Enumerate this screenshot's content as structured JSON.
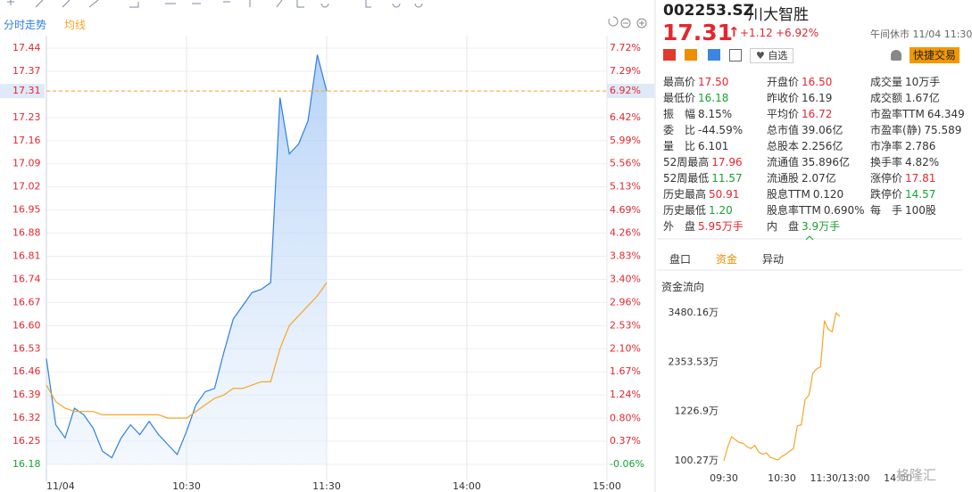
{
  "toolbar": {
    "tab": "分时走势",
    "ma": "均线"
  },
  "chart_data": {
    "type": "line",
    "x": [
      "09:30",
      "09:34",
      "09:38",
      "09:42",
      "09:46",
      "09:50",
      "09:54",
      "09:58",
      "10:02",
      "10:06",
      "10:10",
      "10:14",
      "10:18",
      "10:22",
      "10:26",
      "10:30",
      "10:34",
      "10:38",
      "10:42",
      "10:46",
      "10:50",
      "10:54",
      "10:58",
      "11:02",
      "11:06",
      "11:10",
      "11:14",
      "11:18",
      "11:22",
      "11:26",
      "11:30"
    ],
    "series": [
      {
        "color": "#2f7fe0",
        "values": [
          16.5,
          16.3,
          16.26,
          16.35,
          16.33,
          16.29,
          16.22,
          16.2,
          16.26,
          16.3,
          16.27,
          16.31,
          16.27,
          16.24,
          16.21,
          16.28,
          16.36,
          16.4,
          16.41,
          16.52,
          16.62,
          16.66,
          16.7,
          16.71,
          16.73,
          17.29,
          17.12,
          17.15,
          17.22,
          17.42,
          17.31
        ]
      },
      {
        "color": "#f5a623",
        "values": [
          16.42,
          16.37,
          16.35,
          16.34,
          16.34,
          16.34,
          16.33,
          16.33,
          16.33,
          16.33,
          16.33,
          16.33,
          16.33,
          16.32,
          16.32,
          16.32,
          16.34,
          16.36,
          16.38,
          16.39,
          16.41,
          16.41,
          16.42,
          16.43,
          16.43,
          16.53,
          16.6,
          16.63,
          16.66,
          16.69,
          16.73
        ]
      }
    ],
    "ylim": [
      16.18,
      17.44
    ],
    "yticks": [
      17.44,
      17.37,
      17.31,
      17.23,
      17.16,
      17.09,
      17.02,
      16.95,
      16.88,
      16.81,
      16.74,
      16.67,
      {
        "value": 16.6,
        "label": "16.60"
      },
      16.53,
      16.46,
      16.39,
      16.32,
      16.25,
      16.18
    ],
    "y2lim": [
      -0.06,
      7.72
    ],
    "y2ticks": [
      {
        "value": 7.72,
        "label": "7.72%"
      },
      {
        "value": 7.29,
        "label": "7.29%"
      },
      {
        "value": 6.92,
        "label": "6.92%"
      },
      {
        "value": 6.42,
        "label": "6.42%"
      },
      {
        "value": 5.99,
        "label": "5.99%"
      },
      {
        "value": 5.56,
        "label": "5.56%"
      },
      {
        "value": 5.13,
        "label": "5.13%"
      },
      {
        "value": 4.69,
        "label": "4.69%"
      },
      {
        "value": 4.26,
        "label": "4.26%"
      },
      {
        "value": 3.83,
        "label": "3.83%"
      },
      {
        "value": 3.4,
        "label": "3.40%"
      },
      {
        "value": 2.96,
        "label": "2.96%"
      },
      {
        "value": 2.53,
        "label": "2.53%"
      },
      {
        "value": 2.1,
        "label": "2.10%"
      },
      {
        "value": 1.67,
        "label": "1.67%"
      },
      {
        "value": 1.24,
        "label": "1.24%"
      },
      {
        "value": 0.8,
        "label": "0.80%"
      },
      {
        "value": 0.37,
        "label": "0.37%"
      },
      {
        "value": -0.06,
        "label": "-0.06%"
      }
    ],
    "xticks": [
      {
        "value": "09:30",
        "label": "11/04"
      },
      "10:30",
      "11:30",
      "14:00",
      "15:00"
    ],
    "grid": true
  },
  "quote": {
    "code": "002253.SZ",
    "name": "川大智胜",
    "price": "17.31",
    "change": "+1.12",
    "change_pct": "+6.92%",
    "status": "午间休市 11/04 11:30",
    "watch": "自选",
    "trade": "快捷交易"
  },
  "stats": {
    "columns": [
      [
        {
          "label": "最高价",
          "value": "17.50",
          "tone": "up"
        },
        {
          "label": "最低价",
          "value": "16.18",
          "tone": "down"
        },
        {
          "label": "振　幅",
          "value": "8.15%"
        },
        {
          "label": "委　比",
          "value": "-44.59%"
        },
        {
          "label": "量　比",
          "value": "6.101"
        },
        {
          "label": "52周最高",
          "value": "17.96",
          "tone": "up"
        },
        {
          "label": "52周最低",
          "value": "11.57",
          "tone": "down"
        },
        {
          "label": "历史最高",
          "value": "50.91",
          "tone": "up"
        },
        {
          "label": "历史最低",
          "value": "1.20",
          "tone": "down"
        },
        {
          "label": "外　盘",
          "value": "5.95万手",
          "tone": "up"
        }
      ],
      [
        {
          "label": "开盘价",
          "value": "16.50",
          "tone": "up"
        },
        {
          "label": "昨收价",
          "value": "16.19"
        },
        {
          "label": "平均价",
          "value": "16.72",
          "tone": "up"
        },
        {
          "label": "总市值",
          "value": "39.06亿"
        },
        {
          "label": "总股本",
          "value": "2.256亿"
        },
        {
          "label": "流通值",
          "value": "35.896亿"
        },
        {
          "label": "流通股",
          "value": "2.07亿"
        },
        {
          "label": "股息TTM",
          "value": "0.120"
        },
        {
          "label": "股息率TTM",
          "value": "0.690%"
        },
        {
          "label": "内　盘",
          "value": "3.9万手",
          "tone": "down"
        }
      ],
      [
        {
          "label": "成交量",
          "value": "10万手"
        },
        {
          "label": "成交额",
          "value": "1.67亿"
        },
        {
          "label": "市盈率TTM",
          "value": "64.349"
        },
        {
          "label": "市盈率(静)",
          "value": "75.589"
        },
        {
          "label": "市净率",
          "value": "2.786"
        },
        {
          "label": "换手率",
          "value": "4.82%"
        },
        {
          "label": "涨停价",
          "value": "17.81",
          "tone": "up"
        },
        {
          "label": "跌停价",
          "value": "14.57",
          "tone": "down"
        },
        {
          "label": "每　手",
          "value": "100股"
        }
      ]
    ]
  },
  "tabs": [
    "盘口",
    "资金",
    "异动"
  ],
  "fund_flow": {
    "title": "资金流向",
    "chart": {
      "type": "line",
      "x": [
        "09:30",
        "09:34",
        "09:38",
        "09:42",
        "09:46",
        "09:50",
        "09:54",
        "09:58",
        "10:02",
        "10:06",
        "10:10",
        "10:14",
        "10:18",
        "10:22",
        "10:26",
        "10:30",
        "10:34",
        "10:38",
        "10:42",
        "10:46",
        "10:50",
        "10:54",
        "10:58",
        "11:02",
        "11:06",
        "11:10",
        "11:14",
        "11:18",
        "11:22",
        "11:26",
        "11:30"
      ],
      "values": [
        100,
        420,
        650,
        580,
        520,
        500,
        420,
        380,
        450,
        300,
        250,
        280,
        180,
        150,
        120,
        200,
        250,
        320,
        380,
        900,
        920,
        1500,
        1600,
        2100,
        2200,
        2250,
        3300,
        3100,
        3050,
        3480.16,
        3400
      ],
      "color": "#f5a623",
      "ylim": [
        100.27,
        3480.16
      ],
      "yticks": [
        {
          "value": 3480.16,
          "label": "3480.16万"
        },
        {
          "value": 2353.53,
          "label": "2353.53万"
        },
        {
          "value": 1226.9,
          "label": "1226.9万"
        },
        {
          "value": 100.27,
          "label": "100.27万"
        }
      ],
      "xticks": [
        "09:30",
        "10:30",
        {
          "value": "11:30",
          "label": "11:30/13:00"
        },
        "14:00"
      ]
    }
  },
  "watermark": "格隆汇"
}
